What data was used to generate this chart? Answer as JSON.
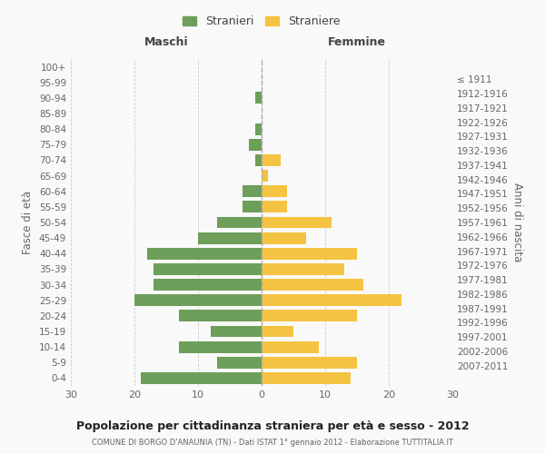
{
  "age_groups": [
    "0-4",
    "5-9",
    "10-14",
    "15-19",
    "20-24",
    "25-29",
    "30-34",
    "35-39",
    "40-44",
    "45-49",
    "50-54",
    "55-59",
    "60-64",
    "65-69",
    "70-74",
    "75-79",
    "80-84",
    "85-89",
    "90-94",
    "95-99",
    "100+"
  ],
  "birth_years": [
    "2007-2011",
    "2002-2006",
    "1997-2001",
    "1992-1996",
    "1987-1991",
    "1982-1986",
    "1977-1981",
    "1972-1976",
    "1967-1971",
    "1962-1966",
    "1957-1961",
    "1952-1956",
    "1947-1951",
    "1942-1946",
    "1937-1941",
    "1932-1936",
    "1927-1931",
    "1922-1926",
    "1917-1921",
    "1912-1916",
    "≤ 1911"
  ],
  "males": [
    19,
    7,
    13,
    8,
    13,
    20,
    17,
    17,
    18,
    10,
    7,
    3,
    3,
    0,
    1,
    2,
    1,
    0,
    1,
    0,
    0
  ],
  "females": [
    14,
    15,
    9,
    5,
    15,
    22,
    16,
    13,
    15,
    7,
    11,
    4,
    4,
    1,
    3,
    0,
    0,
    0,
    0,
    0,
    0
  ],
  "male_color": "#6d9e5a",
  "female_color": "#f5c342",
  "background_color": "#f9f9f9",
  "grid_color": "#cccccc",
  "title": "Popolazione per cittadinanza straniera per età e sesso - 2012",
  "subtitle": "COMUNE DI BORGO D'ANAUNIA (TN) - Dati ISTAT 1° gennaio 2012 - Elaborazione TUTTITALIA.IT",
  "xlabel_left": "Maschi",
  "xlabel_right": "Femmine",
  "ylabel_left": "Fasce di età",
  "ylabel_right": "Anni di nascita",
  "legend_male": "Stranieri",
  "legend_female": "Straniere",
  "xlim": 30,
  "bar_height": 0.75
}
